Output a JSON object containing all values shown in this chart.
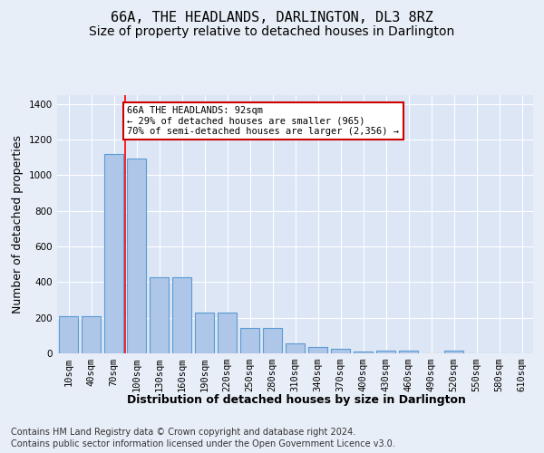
{
  "title": "66A, THE HEADLANDS, DARLINGTON, DL3 8RZ",
  "subtitle": "Size of property relative to detached houses in Darlington",
  "xlabel": "Distribution of detached houses by size in Darlington",
  "ylabel": "Number of detached properties",
  "footnote1": "Contains HM Land Registry data © Crown copyright and database right 2024.",
  "footnote2": "Contains public sector information licensed under the Open Government Licence v3.0.",
  "categories": [
    "10sqm",
    "40sqm",
    "70sqm",
    "100sqm",
    "130sqm",
    "160sqm",
    "190sqm",
    "220sqm",
    "250sqm",
    "280sqm",
    "310sqm",
    "340sqm",
    "370sqm",
    "400sqm",
    "430sqm",
    "460sqm",
    "490sqm",
    "520sqm",
    "550sqm",
    "580sqm",
    "610sqm"
  ],
  "values": [
    207,
    210,
    1120,
    1095,
    425,
    425,
    230,
    230,
    145,
    145,
    57,
    38,
    27,
    10,
    17,
    17,
    0,
    13,
    0,
    0,
    0
  ],
  "bar_color": "#aec6e8",
  "bar_edge_color": "#5b9bd5",
  "red_line_x": 2.5,
  "annotation_text": "66A THE HEADLANDS: 92sqm\n← 29% of detached houses are smaller (965)\n70% of semi-detached houses are larger (2,356) →",
  "annotation_box_color": "#ffffff",
  "annotation_box_edge_color": "#cc0000",
  "bg_color": "#e8eef7",
  "plot_bg_color": "#dce6f5",
  "ylim": [
    0,
    1450
  ],
  "yticks": [
    0,
    200,
    400,
    600,
    800,
    1000,
    1200,
    1400
  ],
  "grid_color": "#ffffff",
  "title_fontsize": 11,
  "subtitle_fontsize": 10,
  "axis_label_fontsize": 9,
  "tick_fontsize": 7.5,
  "footnote_fontsize": 7
}
